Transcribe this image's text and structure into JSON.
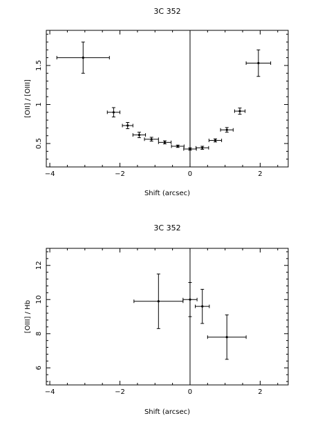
{
  "chart_data": [
    {
      "type": "scatter",
      "title": "3C 352",
      "xlabel": "Shift (arcsec)",
      "ylabel": "[OII] / [OIII]",
      "xlim": [
        -4.1,
        2.8
      ],
      "ylim": [
        0.2,
        1.95
      ],
      "xticks": [
        -4,
        -2,
        0,
        2
      ],
      "xtick_labels": [
        "−4",
        "−2",
        "0",
        "2"
      ],
      "yticks": [
        0.5,
        1,
        1.5
      ],
      "ytick_labels": [
        "0.5",
        "1",
        "1.5"
      ],
      "vertical_line_x": 0,
      "points": [
        {
          "x": -3.05,
          "y": 1.6,
          "xerr": 0.75,
          "yerr": 0.2
        },
        {
          "x": -2.18,
          "y": 0.9,
          "xerr": 0.18,
          "yerr": 0.06
        },
        {
          "x": -1.78,
          "y": 0.73,
          "xerr": 0.15,
          "yerr": 0.04
        },
        {
          "x": -1.45,
          "y": 0.61,
          "xerr": 0.18,
          "yerr": 0.035
        },
        {
          "x": -1.1,
          "y": 0.555,
          "xerr": 0.2,
          "yerr": 0.025
        },
        {
          "x": -0.72,
          "y": 0.515,
          "xerr": 0.18,
          "yerr": 0.02
        },
        {
          "x": -0.35,
          "y": 0.465,
          "xerr": 0.18,
          "yerr": 0.015
        },
        {
          "x": 0.0,
          "y": 0.43,
          "xerr": 0.18,
          "yerr": 0.015
        },
        {
          "x": 0.35,
          "y": 0.445,
          "xerr": 0.18,
          "yerr": 0.02
        },
        {
          "x": 0.72,
          "y": 0.54,
          "xerr": 0.18,
          "yerr": 0.02
        },
        {
          "x": 1.05,
          "y": 0.675,
          "xerr": 0.18,
          "yerr": 0.03
        },
        {
          "x": 1.42,
          "y": 0.915,
          "xerr": 0.15,
          "yerr": 0.04
        },
        {
          "x": 1.95,
          "y": 1.53,
          "xerr": 0.35,
          "yerr": 0.17
        }
      ]
    },
    {
      "type": "scatter",
      "title": "3C 352",
      "xlabel": "Shift (arcsec)",
      "ylabel": "[OIII] / Hb",
      "xlim": [
        -4.1,
        2.8
      ],
      "ylim": [
        5.0,
        13.0
      ],
      "xticks": [
        -4,
        -2,
        0,
        2
      ],
      "xtick_labels": [
        "−4",
        "−2",
        "0",
        "2"
      ],
      "yticks": [
        6,
        8,
        10,
        12
      ],
      "ytick_labels": [
        "6",
        "8",
        "10",
        "12"
      ],
      "vertical_line_x": 0,
      "points": [
        {
          "x": -0.9,
          "y": 9.9,
          "xerr": 0.7,
          "yerr": 1.6
        },
        {
          "x": 0.0,
          "y": 10.0,
          "xerr": 0.2,
          "yerr": 1.0
        },
        {
          "x": 0.35,
          "y": 9.6,
          "xerr": 0.2,
          "yerr": 1.0
        },
        {
          "x": 1.05,
          "y": 7.8,
          "xerr": 0.55,
          "yerr": 1.3
        }
      ]
    }
  ]
}
